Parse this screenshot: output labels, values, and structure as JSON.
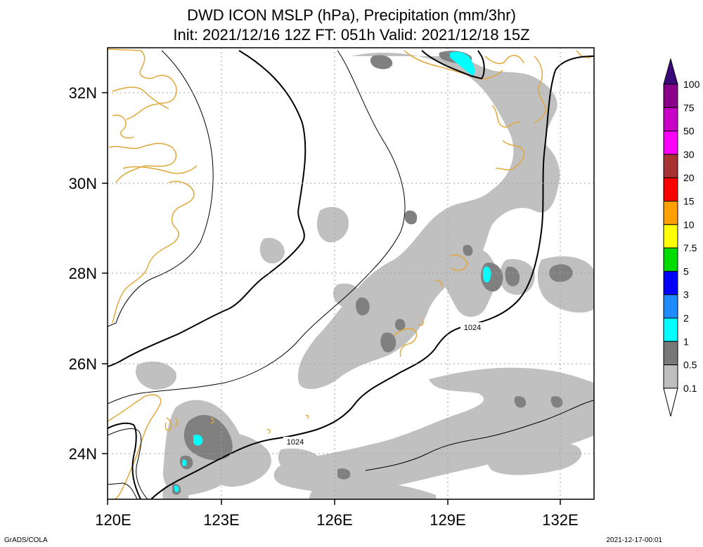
{
  "title": {
    "line1": "DWD ICON MSLP (hPa), Precipitation (mm/3hr)",
    "line2": "Init: 2021/12/16 12Z  FT: 051h  Valid: 2021/12/18 15Z"
  },
  "axes": {
    "lon_labels": [
      "120E",
      "123E",
      "126E",
      "129E",
      "132E"
    ],
    "lat_labels": [
      "32N",
      "30N",
      "28N",
      "26N",
      "24N"
    ]
  },
  "isobar_labels": [
    "1024",
    "1024"
  ],
  "colorbar": {
    "labels": [
      "100",
      "75",
      "50",
      "30",
      "20",
      "15",
      "10",
      "7.5",
      "5",
      "3",
      "2",
      "1",
      "0.5",
      "0.1"
    ],
    "colors": [
      "#3a0a7a",
      "#8a008a",
      "#c800c8",
      "#ff00ff",
      "#a83232",
      "#ff0000",
      "#ffa000",
      "#ffff00",
      "#00dc00",
      "#0000ff",
      "#1e8cff",
      "#00ffff",
      "#787878",
      "#bebebe",
      "#ffffff"
    ]
  },
  "colors": {
    "coastline": "#e0a83a",
    "precip_light": "#c0c0c0",
    "precip_mid": "#808080",
    "precip_heavy": "#00ffff",
    "grid": "#a0a0a0"
  },
  "footer": {
    "left": "GrADS/COLA",
    "right": "2021-12-17-00:01"
  }
}
